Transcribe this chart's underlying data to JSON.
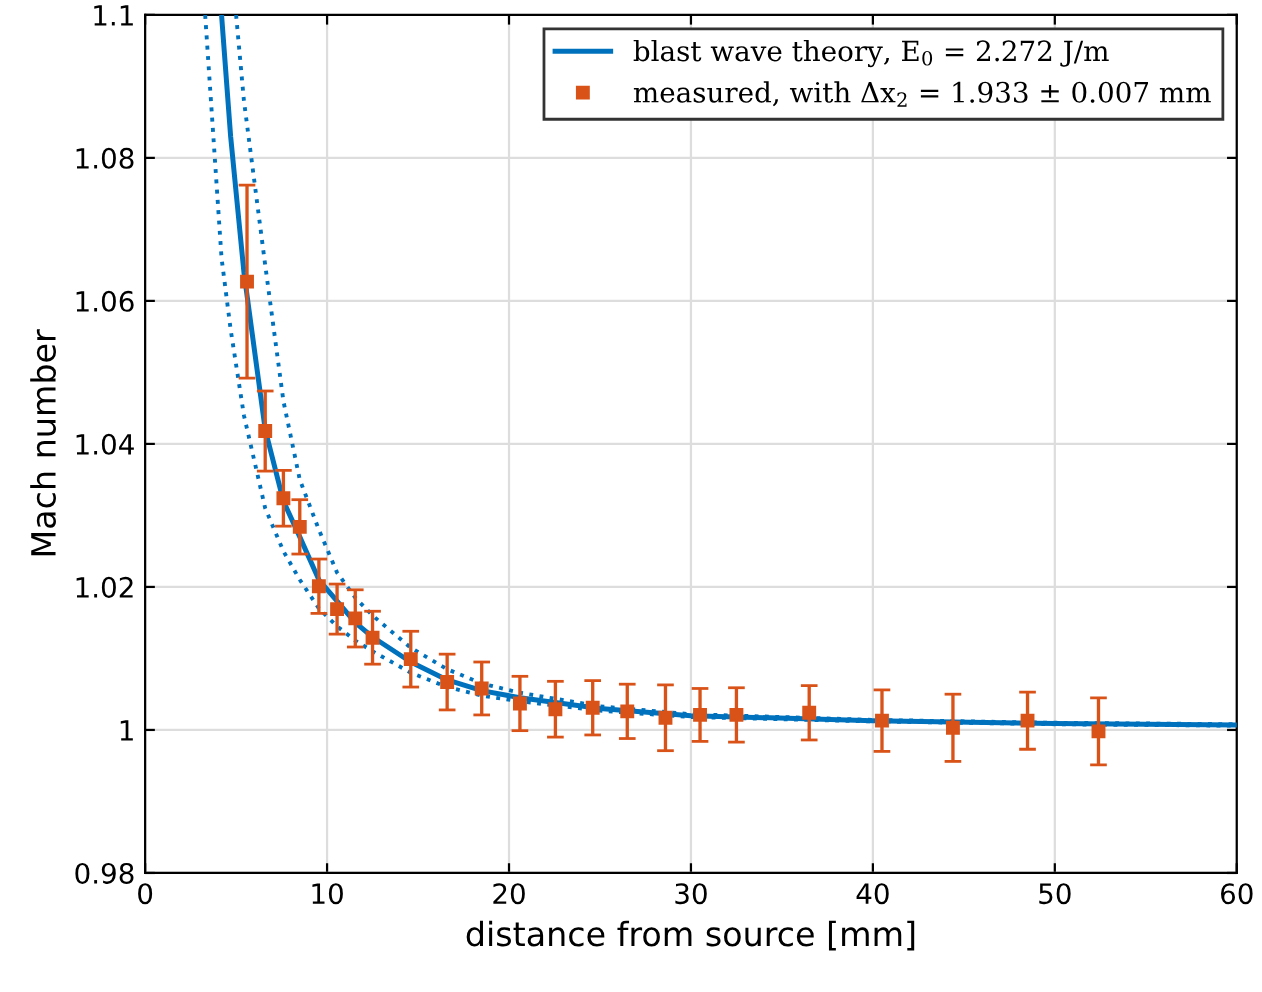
{
  "chart_data": {
    "type": "line",
    "xlabel": "distance from source [mm]",
    "ylabel": "Mach number",
    "xlim": [
      0,
      60
    ],
    "ylim": [
      0.98,
      1.1
    ],
    "xticks": [
      0,
      10,
      20,
      30,
      40,
      50,
      60
    ],
    "yticks": [
      0.98,
      1,
      1.02,
      1.04,
      1.06,
      1.08,
      1.1
    ],
    "grid": true,
    "legend": "top right",
    "series": [
      {
        "name": "blast wave theory, E$_{0}$ = 2.272 J/m",
        "color": "#0072bd",
        "line_style": "solid",
        "marker": "none",
        "x": [
          4.2,
          4.7,
          5.43,
          6.6,
          7.6,
          8.5,
          9.55,
          10.55,
          11.55,
          12.5,
          14.6,
          16.6,
          18.5,
          20.6,
          25,
          30,
          40,
          50,
          60
        ],
        "values": [
          1.1,
          1.083,
          1.064,
          1.042,
          1.032,
          1.027,
          1.021,
          1.018,
          1.015,
          1.013,
          1.0095,
          1.007,
          1.0055,
          1.0045,
          1.003,
          1.002,
          1.0013,
          1.0009,
          1.0007
        ]
      },
      {
        "color": "#0072bd",
        "line_style": "dotted",
        "marker": "none",
        "x": [
          3.3,
          4.2,
          4.7,
          5.43,
          6.6,
          7.6,
          8.5,
          9.55,
          10.55,
          11.55,
          12.5,
          14.6,
          16.6,
          18.5,
          20.6,
          25,
          30,
          40,
          50,
          60
        ],
        "values": [
          1.1,
          1.066,
          1.056,
          1.044,
          1.031,
          1.025,
          1.021,
          1.017,
          1.0145,
          1.0125,
          1.011,
          1.008,
          1.006,
          1.0048,
          1.004,
          1.0027,
          1.0018,
          1.0012,
          1.0008,
          1.0006
        ]
      },
      {
        "color": "#0072bd",
        "line_style": "dotted",
        "marker": "none",
        "x": [
          5.0,
          5.43,
          6.6,
          7.6,
          8.5,
          9.55,
          10.55,
          11.55,
          12.5,
          14.6,
          16.6,
          18.5,
          20.6,
          25,
          30,
          40,
          50,
          60
        ],
        "values": [
          1.1,
          1.088,
          1.065,
          1.046,
          1.035,
          1.028,
          1.022,
          1.0185,
          1.016,
          1.0115,
          1.0085,
          1.0065,
          1.0052,
          1.0033,
          1.0022,
          1.0014,
          1.001,
          1.0008
        ]
      },
      {
        "name": "measured, with Δx$_{2}$ = 1.933 ± 0.007 mm",
        "type": "scatter",
        "color": "#d95319",
        "marker": "square",
        "x": [
          5.6,
          6.6,
          7.6,
          8.5,
          9.55,
          10.55,
          11.55,
          12.5,
          14.6,
          16.6,
          18.5,
          20.6,
          22.55,
          24.6,
          26.5,
          28.6,
          30.5,
          32.5,
          36.5,
          40.5,
          44.4,
          48.5,
          52.4
        ],
        "values": [
          1.0627,
          1.0418,
          1.0324,
          1.0284,
          1.0201,
          1.0169,
          1.0156,
          1.0129,
          1.0099,
          1.0067,
          1.0058,
          1.0037,
          1.0029,
          1.0031,
          1.0026,
          1.0017,
          1.0021,
          1.0021,
          1.0024,
          1.0013,
          1.0003,
          1.0013,
          0.9998
        ],
        "errors": [
          0.0135,
          0.0056,
          0.0039,
          0.0038,
          0.0038,
          0.0035,
          0.004,
          0.0037,
          0.0039,
          0.0039,
          0.0037,
          0.0038,
          0.0039,
          0.0038,
          0.0038,
          0.0046,
          0.0037,
          0.0038,
          0.0038,
          0.0043,
          0.0047,
          0.004,
          0.0047
        ]
      }
    ]
  }
}
